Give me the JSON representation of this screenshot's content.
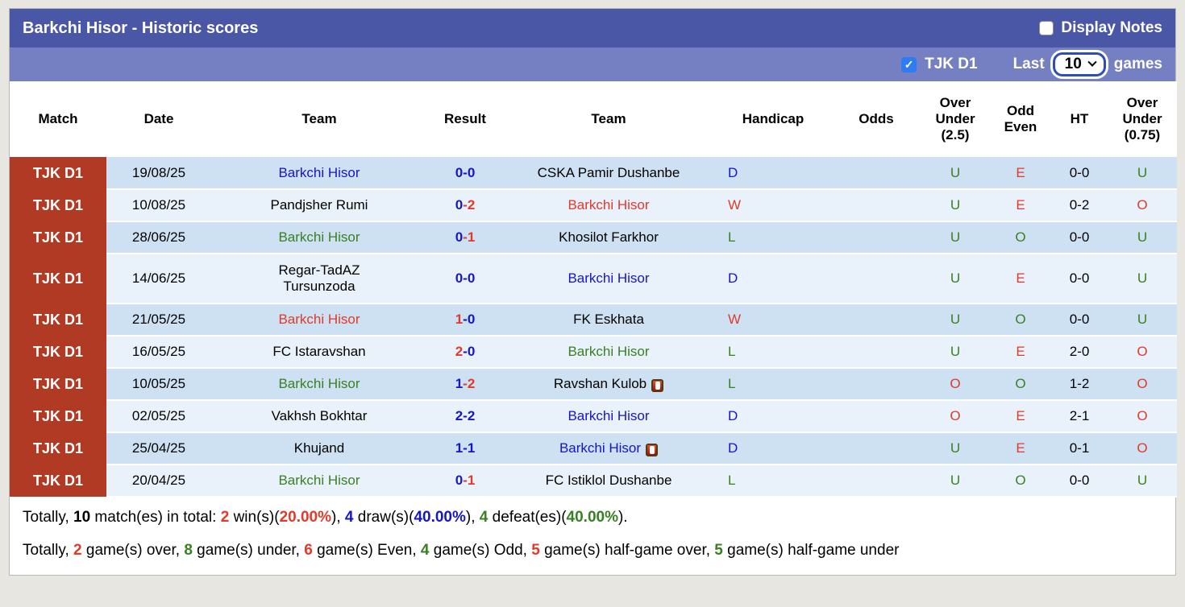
{
  "colors": {
    "blue": "#1515cb",
    "red": "#e03a2b",
    "green": "#398023",
    "black": "#000000",
    "header_bar_bg": "#4a57a7",
    "filter_bar_bg": "#7480c1",
    "league_column_bg": "#b03a23",
    "row_dark_bg": "#cde1f2",
    "row_light_bg": "#e9f2fa",
    "checkbox_checked_bg": "#2e7bf3"
  },
  "header": {
    "title": "Barkchi Hisor - Historic scores",
    "display_notes_label": "Display Notes",
    "display_notes_checked": false
  },
  "filter_bar": {
    "league_label": "TJK D1",
    "league_checked": true,
    "last_label": "Last",
    "selected_games": "10",
    "games_label": "games"
  },
  "table": {
    "columns": [
      "Match",
      "Date",
      "Team",
      "Result",
      "Team",
      "Handicap",
      "Odds",
      "Over Under (2.5)",
      "Odd Even",
      "HT",
      "Over Under (0.75)"
    ],
    "rows": [
      {
        "league": "TJK D1",
        "date": "19/08/25",
        "home": {
          "name": "Barkchi Hisor",
          "color": "blue"
        },
        "score": {
          "home": "0",
          "away": "0",
          "home_color": "blue",
          "away_color": "blue"
        },
        "away": {
          "name": "CSKA Pamir Dushanbe",
          "color": "black"
        },
        "handicap": {
          "text": "D",
          "color": "blue"
        },
        "odds": "",
        "over_under_25": {
          "text": "U",
          "color": "green"
        },
        "odd_even": {
          "text": "E",
          "color": "red"
        },
        "ht": "0-0",
        "over_under_075": {
          "text": "U",
          "color": "green"
        }
      },
      {
        "league": "TJK D1",
        "date": "10/08/25",
        "home": {
          "name": "Pandjsher Rumi",
          "color": "black"
        },
        "score": {
          "home": "0",
          "away": "2",
          "home_color": "blue",
          "away_color": "red"
        },
        "away": {
          "name": "Barkchi Hisor",
          "color": "red"
        },
        "handicap": {
          "text": "W",
          "color": "red"
        },
        "odds": "",
        "over_under_25": {
          "text": "U",
          "color": "green"
        },
        "odd_even": {
          "text": "E",
          "color": "red"
        },
        "ht": "0-2",
        "over_under_075": {
          "text": "O",
          "color": "red"
        }
      },
      {
        "league": "TJK D1",
        "date": "28/06/25",
        "home": {
          "name": "Barkchi Hisor",
          "color": "green"
        },
        "score": {
          "home": "0",
          "away": "1",
          "home_color": "blue",
          "away_color": "red"
        },
        "away": {
          "name": "Khosilot Farkhor",
          "color": "black"
        },
        "handicap": {
          "text": "L",
          "color": "green"
        },
        "odds": "",
        "over_under_25": {
          "text": "U",
          "color": "green"
        },
        "odd_even": {
          "text": "O",
          "color": "green"
        },
        "ht": "0-0",
        "over_under_075": {
          "text": "U",
          "color": "green"
        }
      },
      {
        "league": "TJK D1",
        "date": "14/06/25",
        "tall": true,
        "home": {
          "name": "Regar-TadAZ\nTursunzoda",
          "color": "black"
        },
        "score": {
          "home": "0",
          "away": "0",
          "home_color": "blue",
          "away_color": "blue"
        },
        "away": {
          "name": "Barkchi Hisor",
          "color": "blue"
        },
        "handicap": {
          "text": "D",
          "color": "blue"
        },
        "odds": "",
        "over_under_25": {
          "text": "U",
          "color": "green"
        },
        "odd_even": {
          "text": "E",
          "color": "red"
        },
        "ht": "0-0",
        "over_under_075": {
          "text": "U",
          "color": "green"
        }
      },
      {
        "league": "TJK D1",
        "date": "21/05/25",
        "home": {
          "name": "Barkchi Hisor",
          "color": "red"
        },
        "score": {
          "home": "1",
          "away": "0",
          "home_color": "red",
          "away_color": "blue"
        },
        "away": {
          "name": "FK Eskhata",
          "color": "black"
        },
        "handicap": {
          "text": "W",
          "color": "red"
        },
        "odds": "",
        "over_under_25": {
          "text": "U",
          "color": "green"
        },
        "odd_even": {
          "text": "O",
          "color": "green"
        },
        "ht": "0-0",
        "over_under_075": {
          "text": "U",
          "color": "green"
        }
      },
      {
        "league": "TJK D1",
        "date": "16/05/25",
        "home": {
          "name": "FC Istaravshan",
          "color": "black"
        },
        "score": {
          "home": "2",
          "away": "0",
          "home_color": "red",
          "away_color": "blue"
        },
        "away": {
          "name": "Barkchi Hisor",
          "color": "green"
        },
        "handicap": {
          "text": "L",
          "color": "green"
        },
        "odds": "",
        "over_under_25": {
          "text": "U",
          "color": "green"
        },
        "odd_even": {
          "text": "E",
          "color": "red"
        },
        "ht": "2-0",
        "over_under_075": {
          "text": "O",
          "color": "red"
        }
      },
      {
        "league": "TJK D1",
        "date": "10/05/25",
        "home": {
          "name": "Barkchi Hisor",
          "color": "green"
        },
        "score": {
          "home": "1",
          "away": "2",
          "home_color": "blue",
          "away_color": "red"
        },
        "away": {
          "name": "Ravshan Kulob",
          "color": "black",
          "red_card": true
        },
        "handicap": {
          "text": "L",
          "color": "green"
        },
        "odds": "",
        "over_under_25": {
          "text": "O",
          "color": "red"
        },
        "odd_even": {
          "text": "O",
          "color": "green"
        },
        "ht": "1-2",
        "over_under_075": {
          "text": "O",
          "color": "red"
        }
      },
      {
        "league": "TJK D1",
        "date": "02/05/25",
        "home": {
          "name": "Vakhsh Bokhtar",
          "color": "black"
        },
        "score": {
          "home": "2",
          "away": "2",
          "home_color": "blue",
          "away_color": "blue"
        },
        "away": {
          "name": "Barkchi Hisor",
          "color": "blue"
        },
        "handicap": {
          "text": "D",
          "color": "blue"
        },
        "odds": "",
        "over_under_25": {
          "text": "O",
          "color": "red"
        },
        "odd_even": {
          "text": "E",
          "color": "red"
        },
        "ht": "2-1",
        "over_under_075": {
          "text": "O",
          "color": "red"
        }
      },
      {
        "league": "TJK D1",
        "date": "25/04/25",
        "home": {
          "name": "Khujand",
          "color": "black"
        },
        "score": {
          "home": "1",
          "away": "1",
          "home_color": "blue",
          "away_color": "blue"
        },
        "away": {
          "name": "Barkchi Hisor",
          "color": "blue",
          "red_card": true
        },
        "handicap": {
          "text": "D",
          "color": "blue"
        },
        "odds": "",
        "over_under_25": {
          "text": "U",
          "color": "green"
        },
        "odd_even": {
          "text": "E",
          "color": "red"
        },
        "ht": "0-1",
        "over_under_075": {
          "text": "O",
          "color": "red"
        }
      },
      {
        "league": "TJK D1",
        "date": "20/04/25",
        "home": {
          "name": "Barkchi Hisor",
          "color": "green"
        },
        "score": {
          "home": "0",
          "away": "1",
          "home_color": "blue",
          "away_color": "red"
        },
        "away": {
          "name": "FC Istiklol Dushanbe",
          "color": "black"
        },
        "handicap": {
          "text": "L",
          "color": "green"
        },
        "odds": "",
        "over_under_25": {
          "text": "U",
          "color": "green"
        },
        "odd_even": {
          "text": "O",
          "color": "green"
        },
        "ht": "0-0",
        "over_under_075": {
          "text": "U",
          "color": "green"
        }
      }
    ]
  },
  "summary": {
    "lines": [
      [
        {
          "t": "Totally, "
        },
        {
          "t": "10",
          "b": true
        },
        {
          "t": " match(es) in total: "
        },
        {
          "t": "2",
          "b": true,
          "c": "red"
        },
        {
          "t": " win(s)("
        },
        {
          "t": "20.00%",
          "b": true,
          "c": "red"
        },
        {
          "t": "), "
        },
        {
          "t": "4",
          "b": true,
          "c": "blue"
        },
        {
          "t": " draw(s)("
        },
        {
          "t": "40.00%",
          "b": true,
          "c": "blue"
        },
        {
          "t": "), "
        },
        {
          "t": "4",
          "b": true,
          "c": "green"
        },
        {
          "t": " defeat(es)("
        },
        {
          "t": "40.00%",
          "b": true,
          "c": "green"
        },
        {
          "t": ")."
        }
      ],
      [
        {
          "t": "Totally, "
        },
        {
          "t": "2",
          "b": true,
          "c": "red"
        },
        {
          "t": " game(s) over, "
        },
        {
          "t": "8",
          "b": true,
          "c": "green"
        },
        {
          "t": " game(s) under, "
        },
        {
          "t": "6",
          "b": true,
          "c": "red"
        },
        {
          "t": " game(s) Even, "
        },
        {
          "t": "4",
          "b": true,
          "c": "green"
        },
        {
          "t": " game(s) Odd, "
        },
        {
          "t": "5",
          "b": true,
          "c": "red"
        },
        {
          "t": " game(s) half-game over, "
        },
        {
          "t": "5",
          "b": true,
          "c": "green"
        },
        {
          "t": " game(s) half-game under"
        }
      ]
    ]
  }
}
